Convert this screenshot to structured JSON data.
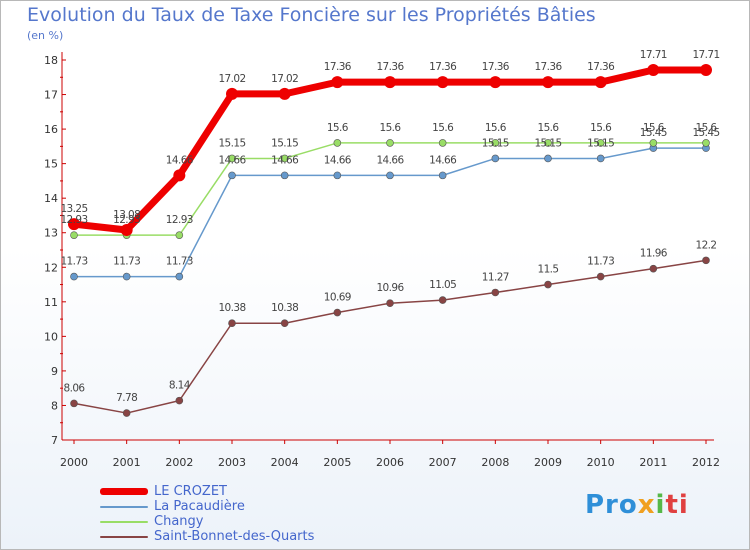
{
  "chart_data": {
    "type": "line",
    "title": "Evolution du Taux de Taxe Foncière sur les Propriétés Bâties",
    "subtitle": "(en %)",
    "xlabel": "",
    "ylabel": "",
    "x": [
      "2000",
      "2001",
      "2002",
      "2003",
      "2004",
      "2005",
      "2006",
      "2007",
      "2008",
      "2009",
      "2010",
      "2011",
      "2012"
    ],
    "ylim": [
      7,
      18
    ],
    "yticks": [
      "7",
      "8",
      "9",
      "10",
      "11",
      "12",
      "13",
      "14",
      "15",
      "16",
      "17",
      "18"
    ],
    "grid": false,
    "legend_position": "bottom-left",
    "series": [
      {
        "name": "LE CROZET",
        "color": "#ee0000",
        "values": [
          13.25,
          13.08,
          14.66,
          17.02,
          17.02,
          17.36,
          17.36,
          17.36,
          17.36,
          17.36,
          17.36,
          17.71,
          17.71
        ],
        "labels": [
          "13.25",
          "13.08",
          "14.66",
          "17.02",
          "17.02",
          "17.36",
          "17.36",
          "17.36",
          "17.36",
          "17.36",
          "17.36",
          "17.71",
          "17.71"
        ]
      },
      {
        "name": "La Pacaudière",
        "color": "#6699cc",
        "values": [
          11.73,
          11.73,
          11.73,
          14.66,
          14.66,
          14.66,
          14.66,
          14.66,
          15.15,
          15.15,
          15.15,
          15.45,
          15.45
        ],
        "labels": [
          "11.73",
          "11.73",
          "11.73",
          "14.66",
          "14.66",
          "14.66",
          "14.66",
          "14.66",
          "15.15",
          "15.15",
          "15.15",
          "15.45",
          "15.45"
        ]
      },
      {
        "name": "Changy",
        "color": "#99dd66",
        "values": [
          12.93,
          12.93,
          12.93,
          15.15,
          15.15,
          15.6,
          15.6,
          15.6,
          15.6,
          15.6,
          15.6,
          15.6,
          15.6
        ],
        "labels": [
          "12.93",
          "12.93",
          "12.93",
          "15.15",
          "15.15",
          "15.6",
          "15.6",
          "15.6",
          "15.6",
          "15.6",
          "15.6",
          "15.6",
          "15.6"
        ]
      },
      {
        "name": "Saint-Bonnet-des-Quarts",
        "color": "#884444",
        "values": [
          8.06,
          7.78,
          8.14,
          10.38,
          10.38,
          10.69,
          10.96,
          11.05,
          11.27,
          11.5,
          11.73,
          11.96,
          12.2
        ],
        "labels": [
          "8.06",
          "7.78",
          "8.14",
          "10.38",
          "10.38",
          "10.69",
          "10.96",
          "11.05",
          "11.27",
          "11.5",
          "11.73",
          "11.96",
          "12.2"
        ]
      }
    ]
  },
  "logo": {
    "p": "Pro",
    "x": "x",
    "i": "i",
    "t": "ti"
  }
}
